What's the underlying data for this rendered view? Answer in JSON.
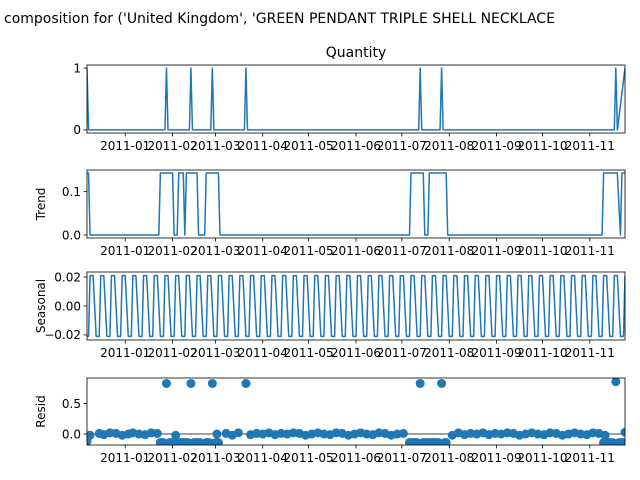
{
  "figure": {
    "title": "composition for ('United Kingdom', 'GREEN PENDANT TRIPLE SHELL NECKLACE"
  },
  "chart_data": [
    {
      "type": "line",
      "id": "observed",
      "title": "Quantity",
      "ylabel": "",
      "yticks": [
        0,
        1
      ],
      "xticks": [
        "2011-01",
        "2011-02",
        "2011-03",
        "2011-04",
        "2011-05",
        "2011-06",
        "2011-07",
        "2011-08",
        "2011-09",
        "2011-10",
        "2011-11"
      ],
      "color": "#1f77b4",
      "grid": false,
      "x_unit": "day number within series (1 = first observation, 2010-12-07)",
      "series": [
        {
          "x": [
            1,
            2,
            3,
            52,
            53,
            54,
            68,
            69,
            70,
            82,
            83,
            84,
            104,
            105,
            106,
            218,
            219,
            220,
            232,
            233,
            234,
            346,
            347,
            348,
            353
          ],
          "y": [
            1,
            0,
            0,
            0,
            1,
            0,
            0,
            1,
            0,
            0,
            1,
            0,
            0,
            1,
            0,
            0,
            1,
            0,
            0,
            1,
            0,
            0,
            1,
            0,
            1
          ]
        }
      ]
    },
    {
      "type": "line",
      "id": "trend",
      "title": "",
      "ylabel": "Trend",
      "yticks": [
        0.0,
        0.1
      ],
      "xticks": [
        "2011-01",
        "2011-02",
        "2011-03",
        "2011-04",
        "2011-05",
        "2011-06",
        "2011-07",
        "2011-08",
        "2011-09",
        "2011-10",
        "2011-11"
      ],
      "color": "#1f77b4",
      "grid": false,
      "series": [
        {
          "x": [
            1,
            2,
            3,
            4,
            48,
            49,
            56,
            57,
            58,
            60,
            61,
            62,
            64,
            65,
            66,
            72,
            73,
            74,
            78,
            79,
            80,
            87,
            88,
            89,
            212,
            213,
            220,
            221,
            222,
            224,
            225,
            226,
            236,
            237,
            338,
            339,
            346,
            347,
            348,
            350,
            351,
            353
          ],
          "y": [
            0.143,
            0.143,
            0.0,
            0.0,
            0.0,
            0.143,
            0.143,
            0.143,
            0.0,
            0.0,
            0.143,
            0.143,
            0.143,
            0.0,
            0.143,
            0.143,
            0.143,
            0.0,
            0.0,
            0.143,
            0.143,
            0.143,
            0.0,
            0.0,
            0.0,
            0.143,
            0.143,
            0.143,
            0.0,
            0.0,
            0.143,
            0.143,
            0.143,
            0.0,
            0.0,
            0.143,
            0.143,
            0.143,
            0.143,
            0.0,
            0.143,
            0.143
          ]
        }
      ]
    },
    {
      "type": "line",
      "id": "seasonal",
      "title": "",
      "ylabel": "Seasonal",
      "yticks": [
        0.02,
        0.0,
        -0.02
      ],
      "xticks": [
        "2011-01",
        "2011-02",
        "2011-03",
        "2011-04",
        "2011-05",
        "2011-06",
        "2011-07",
        "2011-08",
        "2011-09",
        "2011-10",
        "2011-11"
      ],
      "color": "#1f77b4",
      "grid": false,
      "period_days": 7,
      "pattern": [
        -0.021,
        -0.021,
        0.021,
        0.021,
        0.021,
        0.0,
        -0.021
      ]
    },
    {
      "type": "scatter",
      "id": "resid",
      "title": "",
      "ylabel": "Resid",
      "yticks": [
        0.5,
        0.0
      ],
      "xticks": [
        "2011-01",
        "2011-02",
        "2011-03",
        "2011-04",
        "2011-05",
        "2011-06",
        "2011-07",
        "2011-08",
        "2011-09",
        "2011-10",
        "2011-11"
      ],
      "color": "#1f77b4",
      "zero_line": true,
      "baseline_points": {
        "x": [
          3,
          9,
          12,
          16,
          20,
          24,
          28,
          31,
          35,
          39,
          43,
          47,
          59,
          86,
          92,
          96,
          100,
          108,
          112,
          116,
          120,
          124,
          128,
          132,
          136,
          140,
          144,
          148,
          152,
          156,
          160,
          164,
          168,
          172,
          176,
          180,
          184,
          188,
          192,
          196,
          200,
          204,
          208,
          240,
          244,
          248,
          252,
          256,
          260,
          264,
          268,
          272,
          276,
          280,
          284,
          288,
          292,
          296,
          300,
          304,
          308,
          312,
          316,
          320,
          324,
          328,
          332,
          336,
          340
        ],
        "y": [
          -0.02,
          0.01,
          -0.01,
          0.02,
          0.01,
          -0.02,
          0.0,
          0.02,
          0.0,
          -0.01,
          0.02,
          0.01,
          -0.02,
          0.0,
          0.01,
          -0.02,
          0.02,
          -0.01,
          0.01,
          0.0,
          0.02,
          -0.01,
          0.01,
          0.0,
          0.02,
          0.01,
          -0.02,
          0.0,
          0.02,
          0.0,
          -0.01,
          0.02,
          0.01,
          -0.02,
          0.0,
          0.02,
          0.0,
          -0.01,
          0.02,
          0.01,
          -0.02,
          0.0,
          0.01,
          -0.02,
          0.02,
          -0.01,
          0.01,
          0.0,
          0.02,
          -0.01,
          0.01,
          0.0,
          0.02,
          0.01,
          -0.02,
          0.0,
          0.02,
          0.0,
          -0.01,
          0.02,
          0.01,
          -0.02,
          0.0,
          0.02,
          0.0,
          -0.01,
          0.02,
          0.01,
          -0.02
        ]
      },
      "negative_points": {
        "x": [
          1,
          49,
          50,
          51,
          55,
          56,
          57,
          58,
          61,
          62,
          63,
          64,
          65,
          66,
          67,
          71,
          72,
          73,
          74,
          75,
          79,
          80,
          81,
          85,
          86,
          87,
          212,
          213,
          214,
          215,
          216,
          217,
          221,
          222,
          223,
          224,
          225,
          226,
          227,
          228,
          229,
          230,
          231,
          235,
          236,
          339,
          340,
          341,
          342,
          343,
          344,
          345,
          349,
          350,
          351,
          352
        ],
        "y": [
          -0.12,
          -0.14,
          -0.14,
          -0.14,
          -0.14,
          -0.14,
          -0.14,
          -0.14,
          -0.14,
          -0.14,
          -0.14,
          -0.14,
          -0.14,
          -0.14,
          -0.14,
          -0.14,
          -0.14,
          -0.14,
          -0.14,
          -0.14,
          -0.14,
          -0.14,
          -0.14,
          -0.14,
          -0.14,
          -0.14,
          -0.14,
          -0.14,
          -0.14,
          -0.14,
          -0.14,
          -0.14,
          -0.14,
          -0.14,
          -0.14,
          -0.14,
          -0.14,
          -0.14,
          -0.14,
          -0.14,
          -0.14,
          -0.14,
          -0.14,
          -0.14,
          -0.14,
          -0.14,
          -0.14,
          -0.14,
          -0.14,
          -0.14,
          -0.14,
          -0.14,
          -0.14,
          -0.14,
          -0.14,
          -0.14
        ]
      },
      "spike_points": {
        "x": [
          53,
          69,
          83,
          105,
          219,
          233,
          347,
          353
        ],
        "y": [
          0.83,
          0.83,
          0.83,
          0.83,
          0.83,
          0.83,
          0.86,
          0.03
        ]
      }
    }
  ]
}
